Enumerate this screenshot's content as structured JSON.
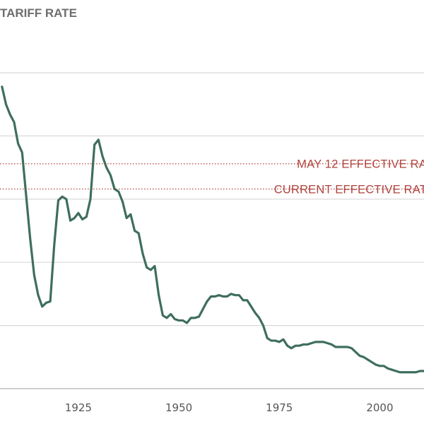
{
  "title": "TARIFF RATE",
  "colors": {
    "line": "#3f6e5c",
    "grid": "#d9d9d9",
    "reference": "#b0433c",
    "axis_text": "#555555",
    "title": "#6e6e6e"
  },
  "chart_data": {
    "type": "line",
    "title": "TARIFF RATE",
    "xlabel": "",
    "ylabel": "",
    "xlim": [
      1905.5,
      2011
    ],
    "ylim": [
      0,
      25
    ],
    "x_ticks": [
      {
        "value": 1925,
        "label": "1925"
      },
      {
        "value": 1950,
        "label": "1950"
      },
      {
        "value": 1975,
        "label": "1975"
      },
      {
        "value": 2000,
        "label": "2000"
      }
    ],
    "y_gridlines": [
      0,
      5,
      10,
      15,
      20,
      25
    ],
    "grid": true,
    "reference_lines": [
      {
        "label": "MAY 12 EFFECTIVE RA",
        "value": 17.8
      },
      {
        "label": "CURRENT EFFECTIVE RAT",
        "value": 15.8
      }
    ],
    "series": [
      {
        "x": [
          1906,
          1907,
          1908,
          1909,
          1910,
          1911,
          1912,
          1913,
          1914,
          1915,
          1916,
          1917,
          1918,
          1919,
          1920,
          1921,
          1922,
          1923,
          1924,
          1925,
          1926,
          1927,
          1928,
          1929,
          1930,
          1931,
          1932,
          1933,
          1934,
          1935,
          1936,
          1937,
          1938,
          1939,
          1940,
          1941,
          1942,
          1943,
          1944,
          1945,
          1946,
          1947,
          1948,
          1949,
          1950,
          1951,
          1952,
          1953,
          1954,
          1955,
          1956,
          1957,
          1958,
          1959,
          1960,
          1961,
          1962,
          1963,
          1964,
          1965,
          1966,
          1967,
          1968,
          1969,
          1970,
          1971,
          1972,
          1973,
          1974,
          1975,
          1976,
          1977,
          1978,
          1979,
          1980,
          1981,
          1982,
          1983,
          1984,
          1985,
          1986,
          1987,
          1988,
          1989,
          1990,
          1991,
          1992,
          1993,
          1994,
          1995,
          1996,
          1997,
          1998,
          1999,
          2000,
          2001,
          2002,
          2003,
          2004,
          2005,
          2006,
          2007,
          2008,
          2009,
          2010,
          2011
        ],
        "values": [
          23.9,
          22.5,
          21.7,
          21.1,
          19.4,
          18.7,
          15.3,
          11.9,
          9.0,
          7.4,
          6.5,
          6.8,
          6.9,
          11.4,
          14.9,
          15.2,
          15.0,
          13.3,
          13.5,
          13.9,
          13.4,
          13.6,
          15.0,
          19.3,
          19.7,
          18.4,
          17.5,
          16.9,
          15.8,
          15.6,
          14.8,
          13.5,
          13.8,
          12.5,
          12.3,
          10.7,
          9.6,
          9.4,
          9.7,
          7.4,
          5.8,
          5.6,
          5.9,
          5.5,
          5.4,
          5.4,
          5.2,
          5.6,
          5.6,
          5.7,
          6.3,
          6.9,
          7.3,
          7.3,
          7.4,
          7.3,
          7.3,
          7.5,
          7.4,
          7.4,
          7.0,
          7.0,
          6.5,
          6.0,
          5.6,
          5.0,
          4.0,
          3.8,
          3.8,
          3.7,
          3.9,
          3.4,
          3.2,
          3.4,
          3.4,
          3.5,
          3.5,
          3.6,
          3.7,
          3.7,
          3.7,
          3.6,
          3.5,
          3.3,
          3.3,
          3.3,
          3.3,
          3.2,
          2.9,
          2.6,
          2.5,
          2.3,
          2.1,
          1.9,
          1.8,
          1.8,
          1.6,
          1.5,
          1.4,
          1.3,
          1.3,
          1.3,
          1.3,
          1.3,
          1.4,
          1.4
        ]
      }
    ]
  }
}
